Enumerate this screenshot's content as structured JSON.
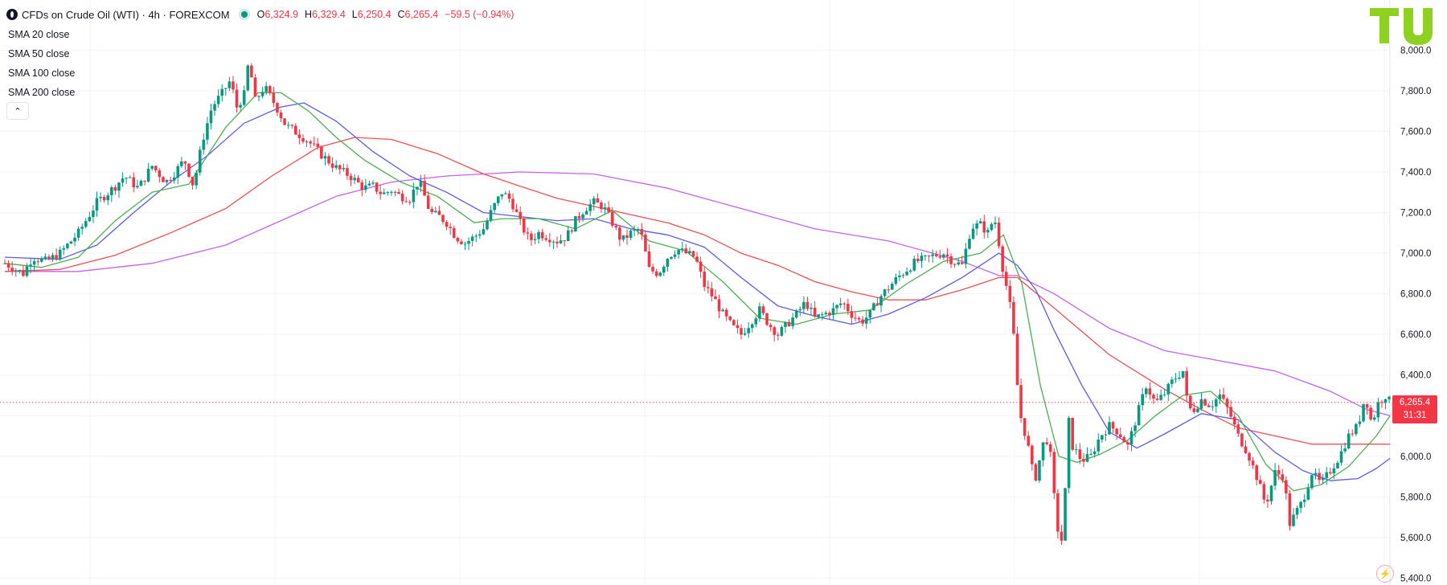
{
  "header": {
    "title": "CFDs on Crude Oil (WTI) · 4h · FOREXCOM",
    "ohlc": [
      {
        "label": "O",
        "value": "6,324.9"
      },
      {
        "label": "H",
        "value": "6,329.4"
      },
      {
        "label": "L",
        "value": "6,250.4"
      },
      {
        "label": "C",
        "value": "6,265.4"
      }
    ],
    "change": "−59.5 (−0.94%)"
  },
  "legend": [
    "SMA 20 close",
    "SMA 50 close",
    "SMA 100 close",
    "SMA 200 close"
  ],
  "current_price": {
    "price": "6,265.4",
    "countdown": "31:31"
  },
  "colors": {
    "up": "#089981",
    "down": "#f23645",
    "sma20": "#4caf50",
    "sma50": "#5b5bf0",
    "sma100": "#f05050",
    "sma200": "#c860f0",
    "logo": "#8ed11f",
    "grid": "#f0f3fa"
  },
  "icons": [
    "symbol-icon",
    "market-open-dot-icon",
    "chevron-up-icon",
    "tradingview-logo-icon",
    "lightning-icon"
  ],
  "chart_data": {
    "type": "candlestick",
    "y_ticks": [
      "5,400.0",
      "5,600.0",
      "5,800.0",
      "6,000.0",
      "6,200.0",
      "6,400.0",
      "6,600.0",
      "6,800.0",
      "7,000.0",
      "7,200.0",
      "7,400.0",
      "7,600.0",
      "7,800.0",
      "8,000.0"
    ],
    "ylim": [
      5390,
      8120
    ],
    "grid": true,
    "anchors": [
      [
        0,
        6950
      ],
      [
        20,
        6900
      ],
      [
        30,
        6980
      ],
      [
        45,
        6960
      ],
      [
        60,
        7000
      ],
      [
        80,
        7100
      ],
      [
        100,
        7250
      ],
      [
        120,
        7330
      ],
      [
        130,
        7380
      ],
      [
        145,
        7320
      ],
      [
        160,
        7430
      ],
      [
        175,
        7350
      ],
      [
        185,
        7400
      ],
      [
        195,
        7460
      ],
      [
        205,
        7330
      ],
      [
        215,
        7560
      ],
      [
        225,
        7720
      ],
      [
        235,
        7780
      ],
      [
        245,
        7850
      ],
      [
        252,
        7720
      ],
      [
        260,
        7780
      ],
      [
        265,
        7950
      ],
      [
        272,
        7750
      ],
      [
        282,
        7820
      ],
      [
        295,
        7720
      ],
      [
        305,
        7630
      ],
      [
        315,
        7600
      ],
      [
        330,
        7550
      ],
      [
        345,
        7480
      ],
      [
        360,
        7420
      ],
      [
        375,
        7380
      ],
      [
        390,
        7320
      ],
      [
        400,
        7330
      ],
      [
        410,
        7290
      ],
      [
        420,
        7310
      ],
      [
        430,
        7280
      ],
      [
        440,
        7270
      ],
      [
        450,
        7360
      ],
      [
        462,
        7200
      ],
      [
        472,
        7180
      ],
      [
        480,
        7150
      ],
      [
        490,
        7080
      ],
      [
        500,
        7050
      ],
      [
        510,
        7080
      ],
      [
        520,
        7120
      ],
      [
        530,
        7220
      ],
      [
        540,
        7300
      ],
      [
        550,
        7260
      ],
      [
        560,
        7150
      ],
      [
        570,
        7060
      ],
      [
        580,
        7100
      ],
      [
        590,
        7080
      ],
      [
        600,
        7060
      ],
      [
        610,
        7080
      ],
      [
        620,
        7160
      ],
      [
        630,
        7220
      ],
      [
        640,
        7250
      ],
      [
        650,
        7230
      ],
      [
        660,
        7150
      ],
      [
        670,
        7060
      ],
      [
        680,
        7100
      ],
      [
        690,
        7120
      ],
      [
        700,
        6920
      ],
      [
        710,
        6900
      ],
      [
        720,
        6980
      ],
      [
        730,
        7020
      ],
      [
        740,
        7000
      ],
      [
        750,
        6980
      ],
      [
        760,
        6840
      ],
      [
        770,
        6780
      ],
      [
        780,
        6700
      ],
      [
        790,
        6640
      ],
      [
        800,
        6600
      ],
      [
        810,
        6660
      ],
      [
        820,
        6720
      ],
      [
        830,
        6650
      ],
      [
        840,
        6600
      ],
      [
        850,
        6650
      ],
      [
        860,
        6700
      ],
      [
        870,
        6760
      ],
      [
        880,
        6680
      ],
      [
        890,
        6700
      ],
      [
        900,
        6720
      ],
      [
        910,
        6760
      ],
      [
        920,
        6700
      ],
      [
        930,
        6660
      ],
      [
        940,
        6700
      ],
      [
        950,
        6780
      ],
      [
        960,
        6830
      ],
      [
        970,
        6880
      ],
      [
        980,
        6920
      ],
      [
        990,
        6960
      ],
      [
        1000,
        6970
      ],
      [
        1010,
        6990
      ],
      [
        1020,
        7000
      ],
      [
        1030,
        6960
      ],
      [
        1040,
        6940
      ],
      [
        1050,
        7130
      ],
      [
        1060,
        7140
      ],
      [
        1068,
        7100
      ],
      [
        1075,
        7180
      ],
      [
        1080,
        7050
      ],
      [
        1085,
        6900
      ],
      [
        1090,
        6800
      ],
      [
        1095,
        6650
      ],
      [
        1100,
        6350
      ],
      [
        1105,
        6150
      ],
      [
        1110,
        6100
      ],
      [
        1115,
        5950
      ],
      [
        1120,
        5900
      ],
      [
        1125,
        6000
      ],
      [
        1130,
        6100
      ],
      [
        1135,
        6050
      ],
      [
        1140,
        5800
      ],
      [
        1145,
        5600
      ],
      [
        1150,
        5580
      ],
      [
        1155,
        6200
      ],
      [
        1160,
        6050
      ],
      [
        1170,
        5980
      ],
      [
        1180,
        6000
      ],
      [
        1190,
        6100
      ],
      [
        1200,
        6150
      ],
      [
        1210,
        6120
      ],
      [
        1220,
        6050
      ],
      [
        1230,
        6200
      ],
      [
        1240,
        6350
      ],
      [
        1250,
        6260
      ],
      [
        1260,
        6310
      ],
      [
        1270,
        6380
      ],
      [
        1280,
        6420
      ],
      [
        1285,
        6250
      ],
      [
        1290,
        6220
      ],
      [
        1300,
        6280
      ],
      [
        1310,
        6250
      ],
      [
        1320,
        6300
      ],
      [
        1330,
        6220
      ],
      [
        1340,
        6100
      ],
      [
        1350,
        6020
      ],
      [
        1360,
        5900
      ],
      [
        1370,
        5760
      ],
      [
        1380,
        5920
      ],
      [
        1390,
        5900
      ],
      [
        1395,
        5660
      ],
      [
        1400,
        5700
      ],
      [
        1410,
        5780
      ],
      [
        1420,
        5920
      ],
      [
        1430,
        5860
      ],
      [
        1440,
        5930
      ],
      [
        1450,
        6000
      ],
      [
        1460,
        6100
      ],
      [
        1470,
        6150
      ],
      [
        1478,
        6300
      ],
      [
        1485,
        6160
      ],
      [
        1492,
        6260
      ],
      [
        1500,
        6300
      ],
      [
        1505,
        6265
      ]
    ],
    "sma20_points": [
      [
        0,
        6950
      ],
      [
        40,
        6930
      ],
      [
        80,
        6980
      ],
      [
        120,
        7160
      ],
      [
        160,
        7300
      ],
      [
        200,
        7340
      ],
      [
        240,
        7620
      ],
      [
        275,
        7790
      ],
      [
        300,
        7790
      ],
      [
        330,
        7700
      ],
      [
        360,
        7570
      ],
      [
        390,
        7460
      ],
      [
        430,
        7350
      ],
      [
        470,
        7280
      ],
      [
        510,
        7150
      ],
      [
        540,
        7170
      ],
      [
        580,
        7170
      ],
      [
        620,
        7120
      ],
      [
        660,
        7210
      ],
      [
        700,
        7060
      ],
      [
        740,
        7010
      ],
      [
        780,
        6860
      ],
      [
        820,
        6680
      ],
      [
        860,
        6650
      ],
      [
        900,
        6700
      ],
      [
        940,
        6720
      ],
      [
        980,
        6850
      ],
      [
        1020,
        6960
      ],
      [
        1060,
        7000
      ],
      [
        1085,
        7090
      ],
      [
        1105,
        6850
      ],
      [
        1125,
        6350
      ],
      [
        1145,
        6000
      ],
      [
        1165,
        5970
      ],
      [
        1190,
        6010
      ],
      [
        1220,
        6080
      ],
      [
        1250,
        6200
      ],
      [
        1280,
        6300
      ],
      [
        1310,
        6320
      ],
      [
        1340,
        6200
      ],
      [
        1370,
        5960
      ],
      [
        1400,
        5830
      ],
      [
        1430,
        5860
      ],
      [
        1460,
        5950
      ],
      [
        1490,
        6100
      ],
      [
        1505,
        6200
      ]
    ],
    "sma50_points": [
      [
        0,
        6980
      ],
      [
        60,
        6970
      ],
      [
        100,
        7040
      ],
      [
        140,
        7200
      ],
      [
        180,
        7350
      ],
      [
        220,
        7480
      ],
      [
        260,
        7640
      ],
      [
        300,
        7720
      ],
      [
        325,
        7740
      ],
      [
        360,
        7650
      ],
      [
        400,
        7500
      ],
      [
        440,
        7380
      ],
      [
        480,
        7300
      ],
      [
        520,
        7200
      ],
      [
        560,
        7180
      ],
      [
        600,
        7160
      ],
      [
        640,
        7170
      ],
      [
        680,
        7120
      ],
      [
        720,
        7090
      ],
      [
        760,
        7030
      ],
      [
        800,
        6880
      ],
      [
        840,
        6740
      ],
      [
        880,
        6690
      ],
      [
        920,
        6650
      ],
      [
        960,
        6700
      ],
      [
        1000,
        6780
      ],
      [
        1040,
        6880
      ],
      [
        1080,
        7000
      ],
      [
        1100,
        6940
      ],
      [
        1120,
        6820
      ],
      [
        1140,
        6620
      ],
      [
        1170,
        6350
      ],
      [
        1200,
        6120
      ],
      [
        1230,
        6040
      ],
      [
        1260,
        6110
      ],
      [
        1300,
        6210
      ],
      [
        1340,
        6180
      ],
      [
        1380,
        6020
      ],
      [
        1410,
        5930
      ],
      [
        1440,
        5880
      ],
      [
        1470,
        5890
      ],
      [
        1490,
        5940
      ],
      [
        1505,
        5990
      ]
    ],
    "sma100_points": [
      [
        0,
        6910
      ],
      [
        60,
        6920
      ],
      [
        120,
        6990
      ],
      [
        180,
        7100
      ],
      [
        240,
        7220
      ],
      [
        290,
        7380
      ],
      [
        340,
        7520
      ],
      [
        380,
        7570
      ],
      [
        420,
        7560
      ],
      [
        470,
        7490
      ],
      [
        520,
        7390
      ],
      [
        560,
        7330
      ],
      [
        600,
        7270
      ],
      [
        640,
        7230
      ],
      [
        680,
        7190
      ],
      [
        720,
        7150
      ],
      [
        760,
        7090
      ],
      [
        800,
        7000
      ],
      [
        840,
        6940
      ],
      [
        880,
        6860
      ],
      [
        920,
        6810
      ],
      [
        960,
        6770
      ],
      [
        1000,
        6770
      ],
      [
        1040,
        6820
      ],
      [
        1080,
        6880
      ],
      [
        1100,
        6880
      ],
      [
        1140,
        6730
      ],
      [
        1200,
        6500
      ],
      [
        1260,
        6330
      ],
      [
        1300,
        6230
      ],
      [
        1340,
        6140
      ],
      [
        1380,
        6100
      ],
      [
        1420,
        6060
      ],
      [
        1460,
        6060
      ],
      [
        1505,
        6060
      ]
    ],
    "sma200_points": [
      [
        0,
        6910
      ],
      [
        80,
        6910
      ],
      [
        160,
        6950
      ],
      [
        240,
        7040
      ],
      [
        300,
        7160
      ],
      [
        360,
        7280
      ],
      [
        420,
        7350
      ],
      [
        480,
        7380
      ],
      [
        560,
        7400
      ],
      [
        640,
        7390
      ],
      [
        720,
        7320
      ],
      [
        800,
        7220
      ],
      [
        880,
        7120
      ],
      [
        960,
        7060
      ],
      [
        1040,
        6960
      ],
      [
        1080,
        6890
      ],
      [
        1100,
        6890
      ],
      [
        1140,
        6800
      ],
      [
        1200,
        6630
      ],
      [
        1260,
        6520
      ],
      [
        1320,
        6470
      ],
      [
        1380,
        6420
      ],
      [
        1440,
        6320
      ],
      [
        1480,
        6230
      ],
      [
        1505,
        6200
      ]
    ]
  }
}
